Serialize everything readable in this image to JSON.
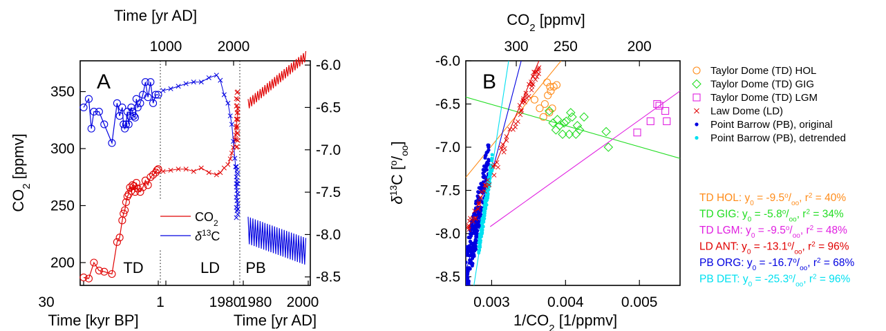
{
  "chart_data": [
    {
      "panel_label": "A",
      "type": "line",
      "title": "",
      "top_axis_label": "Time [yr AD]",
      "top_ticks": [
        "1000",
        "2000"
      ],
      "bottom_label_left": "Time [kyr BP]",
      "bottom_label_right": "Time [yr AD]",
      "bottom_ticks": {
        "td_start": "30",
        "td_end": "1",
        "ld_end": "1980",
        "pb_start": "1980",
        "pb_mid": "2000"
      },
      "ylabel_left": "CO2 [ppmv]",
      "ylabel_left_parts": {
        "base": "CO",
        "sub": "2",
        "unit": " [ppmv]"
      },
      "ylim_left": [
        180,
        377
      ],
      "yticks_left": [
        200,
        250,
        300,
        350
      ],
      "ylabel_right_ticks": [
        "-6.0",
        "-6.5",
        "-7.0",
        "-7.5",
        "-8.0",
        "-8.5"
      ],
      "yticks_right": [
        -6.0,
        -6.5,
        -7.0,
        -7.5,
        -8.0,
        -8.5
      ],
      "ylim_right": [
        -8.6,
        -5.95
      ],
      "section_labels": [
        "TD",
        "LD",
        "PB"
      ],
      "legend": [
        {
          "base": "CO",
          "sub": "2",
          "color": "#e00000"
        },
        {
          "base": "δ",
          "sup": "13",
          "rest": "C",
          "color": "#0000e0"
        }
      ],
      "series": {
        "td_co2": {
          "x_kyr_bp": [
            30,
            28,
            26,
            24,
            22,
            19,
            17,
            16,
            15,
            14.5,
            14,
            13.5,
            13,
            12.5,
            12,
            11.5,
            11,
            10.5,
            10,
            9.5,
            9,
            8,
            7,
            6,
            5,
            4,
            3,
            2,
            1.5,
            1
          ],
          "y": [
            187,
            186,
            200,
            193,
            192,
            190,
            218,
            222,
            237,
            243,
            246,
            253,
            258,
            260,
            266,
            263,
            268,
            267,
            262,
            270,
            265,
            262,
            266,
            272,
            268,
            275,
            277,
            279,
            281,
            282
          ]
        },
        "td_d13c": {
          "x_kyr_bp": [
            30,
            28,
            27,
            26,
            24,
            22,
            19,
            17,
            16,
            15,
            14.5,
            14,
            13.5,
            13,
            12.5,
            12,
            11.5,
            11,
            10.5,
            10,
            9.5,
            9,
            8,
            7,
            6,
            5,
            4,
            3,
            2,
            1
          ],
          "y": [
            -6.5,
            -6.4,
            -6.75,
            -6.55,
            -6.55,
            -6.7,
            -6.92,
            -6.45,
            -6.6,
            -6.5,
            -6.7,
            -6.75,
            -6.7,
            -6.55,
            -6.7,
            -6.6,
            -6.5,
            -6.55,
            -6.6,
            -6.62,
            -6.4,
            -6.5,
            -6.45,
            -6.35,
            -6.2,
            -6.38,
            -6.2,
            -6.45,
            -6.35,
            -6.35
          ]
        },
        "ld_co2": {
          "x_yr_ad": [
            1000,
            1100,
            1200,
            1300,
            1400,
            1500,
            1600,
            1700,
            1750,
            1800,
            1850,
            1880,
            1900,
            1920,
            1940,
            1950,
            1960,
            1970,
            1978
          ],
          "y": [
            280,
            281,
            282,
            282,
            280,
            283,
            279,
            277,
            279,
            283,
            286,
            291,
            296,
            301,
            308,
            312,
            318,
            326,
            335
          ]
        },
        "ld_d13c": {
          "x_yr_ad": [
            1000,
            1100,
            1200,
            1300,
            1400,
            1500,
            1600,
            1700,
            1750,
            1800,
            1850,
            1880,
            1900,
            1920,
            1940,
            1950,
            1960,
            1970,
            1978
          ],
          "y": [
            -6.3,
            -6.28,
            -6.25,
            -6.22,
            -6.2,
            -6.2,
            -6.15,
            -6.12,
            -6.18,
            -6.35,
            -6.45,
            -6.6,
            -6.7,
            -6.9,
            -7.1,
            -7.2,
            -7.4,
            -7.6,
            -7.7
          ]
        },
        "pb_co2": {
          "x_start_yr_ad": 1982,
          "x_end_yr_ad": 2006,
          "y_start": 339,
          "y_end": 381,
          "seasonal_amplitude": 9,
          "cycles": 24
        },
        "pb_d13c": {
          "x_start_yr_ad": 1982,
          "x_end_yr_ad": 2006,
          "y_start": -7.95,
          "y_end": -8.2,
          "seasonal_amplitude": 0.32,
          "cycles": 24
        }
      }
    },
    {
      "panel_label": "B",
      "type": "scatter",
      "title": "",
      "xlabel": "1/CO2 [1/ppmv]",
      "xlabel_parts": {
        "pre": "1/CO",
        "sub": "2",
        "unit": " [1/ppmv]"
      },
      "top_axis_label_parts": {
        "base": "CO",
        "sub": "2",
        "unit": " [ppmv]"
      },
      "top_ticks": [
        300,
        250,
        200
      ],
      "xlim": [
        0.00265,
        0.00555
      ],
      "xticks": [
        0.003,
        0.004,
        0.005
      ],
      "xtick_labels": [
        "0.003",
        "0.004",
        "0.005"
      ],
      "ylim": [
        -8.6,
        -6.0
      ],
      "yticks": [
        -6.0,
        -6.5,
        -7.0,
        -7.5,
        -8.0,
        -8.5
      ],
      "ytick_labels": [
        "-6.0",
        "-6.5",
        "-7.0",
        "-7.5",
        "-8.0",
        "-8.5"
      ],
      "ylabel_parts": {
        "delta": "δ",
        "sup": "13",
        "rest": "C [",
        "per": "o",
        "sub": "oo",
        "close": "]"
      },
      "legend": [
        {
          "name": "Taylor Dome (TD) HOL",
          "marker": "circle",
          "color": "#ff8c1a"
        },
        {
          "name": "Taylor Dome (TD) GIG",
          "marker": "diamond",
          "color": "#22dd22"
        },
        {
          "name": "Taylor Dome (TD) LGM",
          "marker": "square",
          "color": "#e020e0"
        },
        {
          "name": "Law Dome (LD)",
          "marker": "cross",
          "color": "#e00000"
        },
        {
          "name": "Point Barrow (PB), original",
          "marker": "dot",
          "color": "#0000e0"
        },
        {
          "name": "Point Barrow (PB), detrended",
          "marker": "dot",
          "color": "#00e0f0"
        }
      ],
      "stats": [
        {
          "label": "TD HOL",
          "y0": "-9.5",
          "r2": "40%",
          "color": "#ff8c1a"
        },
        {
          "label": "TD GIG",
          "y0": "-5.8",
          "r2": "34%",
          "color": "#22dd22"
        },
        {
          "label": "TD LGM",
          "y0": "-9.5",
          "r2": "48%",
          "color": "#e020e0"
        },
        {
          "label": "LD ANT",
          "y0": "-13.1",
          "r2": "96%",
          "color": "#e00000"
        },
        {
          "label": "PB ORG",
          "y0": "-16.7",
          "r2": "68%",
          "color": "#0000e0"
        },
        {
          "label": "PB DET",
          "y0": "-25.3",
          "r2": "96%",
          "color": "#00e0f0"
        }
      ],
      "stat_text": {
        "eq": ": y",
        "y0sub": "0",
        "eqsign": " = ",
        "per": "o",
        "oo": "oo",
        "r": ", r",
        "r2sup": "2",
        "r2eq": " = "
      },
      "series": [
        {
          "name": "Taylor Dome (TD) HOL",
          "x": [
            0.00358,
            0.00365,
            0.00372,
            0.00376,
            0.0038,
            0.00384,
            0.0037,
            0.00375,
            0.00378,
            0.00382,
            0.00388,
            0.00379
          ],
          "y": [
            -6.45,
            -6.55,
            -6.5,
            -6.4,
            -6.35,
            -6.3,
            -6.65,
            -6.25,
            -6.6,
            -6.55,
            -6.28,
            -6.3
          ]
        },
        {
          "name": "Taylor Dome (TD) GIG",
          "x": [
            0.00378,
            0.00383,
            0.00387,
            0.00392,
            0.00396,
            0.00401,
            0.00405,
            0.00409,
            0.00414,
            0.00419,
            0.00389,
            0.00398,
            0.00407,
            0.00416,
            0.00425,
            0.00455,
            0.00458
          ],
          "y": [
            -6.58,
            -6.72,
            -6.8,
            -6.75,
            -6.85,
            -6.7,
            -6.85,
            -6.65,
            -6.85,
            -6.8,
            -6.68,
            -6.72,
            -6.6,
            -6.75,
            -6.65,
            -6.82,
            -7.0
          ]
        },
        {
          "name": "Taylor Dome (TD) LGM",
          "x": [
            0.00497,
            0.00515,
            0.00524,
            0.00527,
            0.00535,
            0.00537
          ],
          "y": [
            -6.83,
            -6.7,
            -6.5,
            -6.52,
            -6.58,
            -6.7
          ]
        },
        {
          "name": "Law Dome (LD)",
          "fit_from": [
            0.00268,
            -7.95
          ],
          "fit_to": [
            0.00365,
            -6.05
          ]
        },
        {
          "name": "Point Barrow (PB), original",
          "x_range": [
            0.00263,
            0.00297
          ],
          "y_range": [
            -8.55,
            -7.15
          ]
        },
        {
          "name": "Point Barrow (PB), detrended",
          "x_range": [
            0.00282,
            0.00301
          ],
          "y_range": [
            -8.2,
            -7.15
          ]
        }
      ],
      "fits": [
        {
          "name": "TD HOL",
          "x": [
            0.00265,
            0.00394
          ],
          "y": [
            -7.35,
            -6.0
          ],
          "color": "#ff8c1a"
        },
        {
          "name": "TD GIG",
          "x": [
            0.00265,
            0.00555
          ],
          "y": [
            -6.42,
            -7.13
          ],
          "color": "#22dd22"
        },
        {
          "name": "TD LGM",
          "x": [
            0.00298,
            0.00555
          ],
          "y": [
            -7.92,
            -6.35
          ],
          "color": "#e020e0"
        },
        {
          "name": "LD ANT",
          "x": [
            0.00268,
            0.00364
          ],
          "y": [
            -7.95,
            -6.0
          ],
          "color": "#e00000"
        },
        {
          "name": "PB ORG",
          "x": [
            0.00265,
            0.0034
          ],
          "y": [
            -8.45,
            -6.0
          ],
          "color": "#0000e0"
        },
        {
          "name": "PB DET",
          "x": [
            0.00276,
            0.00323
          ],
          "y": [
            -8.6,
            -6.0
          ],
          "color": "#00e0f0"
        }
      ]
    }
  ]
}
